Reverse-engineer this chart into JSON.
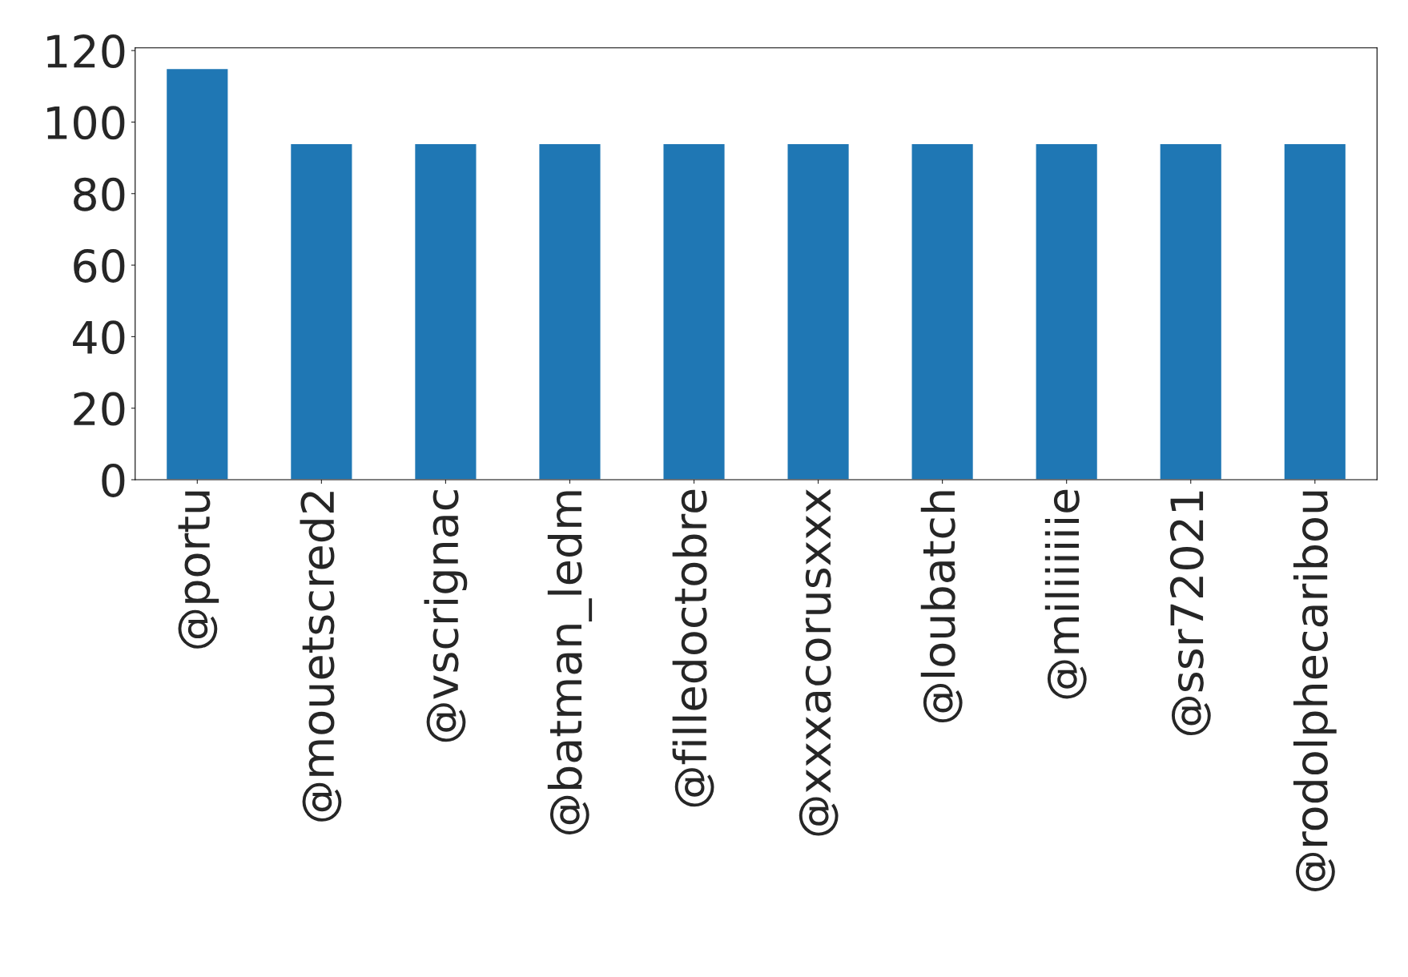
{
  "chart_data": {
    "type": "bar",
    "categories": [
      "@portu",
      "@mouetscred2",
      "@vscrignac",
      "@batman_ledm",
      "@filledoctobre",
      "@xxxacorusxxx",
      "@loubatch",
      "@miliiiiiie",
      "@ssr72021",
      "@rodolphecaribou"
    ],
    "values": [
      115,
      94,
      94,
      94,
      94,
      94,
      94,
      94,
      94,
      94
    ],
    "color": "#1f77b4",
    "ylim": [
      0,
      120.75
    ],
    "yticks": [
      0,
      20,
      40,
      60,
      80,
      100,
      120
    ],
    "grid": false,
    "legend": false
  }
}
